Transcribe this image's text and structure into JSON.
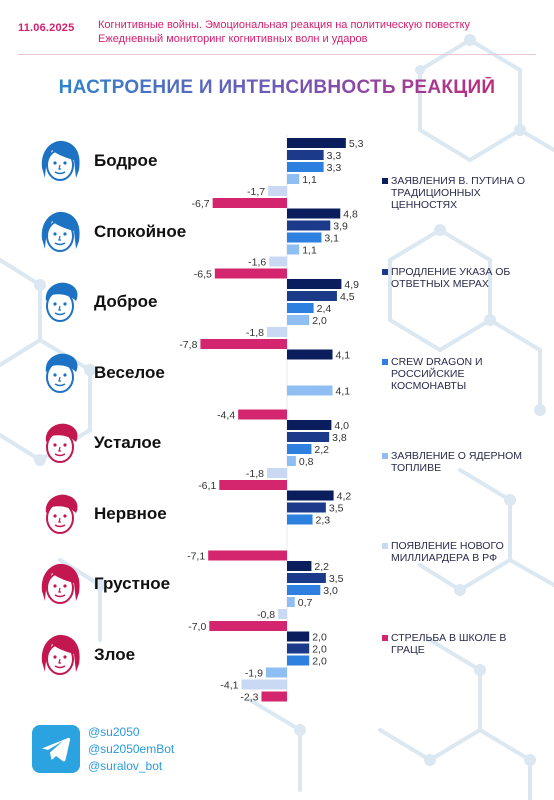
{
  "header": {
    "date": "11.06.2025",
    "line1": "Когнитивные войны. Эмоциональная реакция на политическую повестку",
    "line2": "Ежедневный мониторинг когнитивных волн и ударов"
  },
  "title": "НАСТРОЕНИЕ И ИНТЕНСИВНОСТЬ РЕАКЦИЙ",
  "colors": {
    "series": [
      "#0a1e5e",
      "#1b3a8a",
      "#2d7fe0",
      "#8fbff2",
      "#c9d9f4",
      "#d4266e"
    ],
    "accent_pink": "#d41f6e",
    "accent_blue": "#1d8fd0"
  },
  "chart_data": {
    "type": "bar",
    "orientation": "horizontal",
    "categories": [
      "Бодрое",
      "Спокойное",
      "Доброе",
      "Веселое",
      "Усталое",
      "Нервное",
      "Грустное",
      "Злое"
    ],
    "series": [
      {
        "name": "Заявления В. Путина о традиционных ценностях",
        "values": [
          5.3,
          4.8,
          4.9,
          4.1,
          4.0,
          4.2,
          2.2,
          2.0
        ]
      },
      {
        "name": "Продление указа об ответных мерах",
        "values": [
          3.3,
          3.9,
          4.5,
          null,
          3.8,
          3.5,
          3.5,
          2.0
        ]
      },
      {
        "name": "Crew Dragon и российские космонавты",
        "values": [
          3.3,
          3.1,
          2.4,
          null,
          2.2,
          2.3,
          3.0,
          2.0
        ]
      },
      {
        "name": "Заявление о ядерном топливе",
        "values": [
          1.1,
          1.1,
          2.0,
          4.1,
          0.8,
          null,
          0.7,
          -1.9
        ]
      },
      {
        "name": "Появление нового миллиардера в РФ",
        "values": [
          -1.7,
          -1.6,
          -1.8,
          null,
          -1.8,
          null,
          -0.8,
          -4.1
        ]
      },
      {
        "name": "Стрельба в школе в Граце",
        "values": [
          -6.7,
          -6.5,
          -7.8,
          -4.4,
          -6.1,
          -7.1,
          -7.0,
          -2.3
        ]
      }
    ],
    "value_labels": [
      [
        "5,3",
        "3,3",
        "3,3",
        "1,1",
        "-1,7",
        "-6,7"
      ],
      [
        "4,8",
        "3,9",
        "3,1",
        "1,1",
        "-1,6",
        "-6,5"
      ],
      [
        "4,9",
        "4,5",
        "2,4",
        "2,0",
        "-1,8",
        "-7,8"
      ],
      [
        "4,1",
        "",
        "",
        "4,1",
        "",
        "-4,4"
      ],
      [
        "4,0",
        "3,8",
        "2,2",
        "0,8",
        "-1,8",
        "-6,1"
      ],
      [
        "4,2",
        "3,5",
        "2,3",
        "",
        "",
        "-7,1"
      ],
      [
        "2,2",
        "3,5",
        "3,0",
        "0,7",
        "-0,8",
        "-7,0"
      ],
      [
        "2,0",
        "2,0",
        "2,0",
        "-1,9",
        "-4,1",
        "-2,3"
      ]
    ],
    "legend_position": "right"
  },
  "legend": [
    {
      "label": "ЗАЯВЛЕНИЯ В. ПУТИНА О ТРАДИЦИОННЫХ ЦЕННОСТЯХ",
      "color": "#0a1e5e"
    },
    {
      "label": "ПРОДЛЕНИЕ УКАЗА ОБ ОТВЕТНЫХ МЕРАХ",
      "color": "#1b3a8a"
    },
    {
      "label": "CREW DRAGON И РОССИЙСКИЕ КОСМОНАВТЫ",
      "color": "#2d7fe0"
    },
    {
      "label": "ЗАЯВЛЕНИЕ О ЯДЕРНОМ ТОПЛИВЕ",
      "color": "#8fbff2"
    },
    {
      "label": "ПОЯВЛЕНИЕ НОВОГО МИЛЛИАРДЕРА В РФ",
      "color": "#c9d9f4"
    },
    {
      "label": "СТРЕЛЬБА В ШКОЛЕ В ГРАЦЕ",
      "color": "#d4266e"
    }
  ],
  "emotions": [
    {
      "label": "Бодрое",
      "face": "blue-woman-face-icon"
    },
    {
      "label": "Спокойное",
      "face": "blue-woman-face-icon"
    },
    {
      "label": "Доброе",
      "face": "blue-man-face-icon"
    },
    {
      "label": "Веселое",
      "face": "blue-man-face-icon"
    },
    {
      "label": "Усталое",
      "face": "red-man-face-icon"
    },
    {
      "label": "Нервное",
      "face": "red-man-face-icon"
    },
    {
      "label": "Грустное",
      "face": "red-woman-face-icon"
    },
    {
      "label": "Злое",
      "face": "red-woman-face-icon"
    }
  ],
  "footer": {
    "icon": "telegram-icon",
    "handles": [
      "@su2050",
      "@su2050emBot",
      "@suralov_bot"
    ]
  }
}
